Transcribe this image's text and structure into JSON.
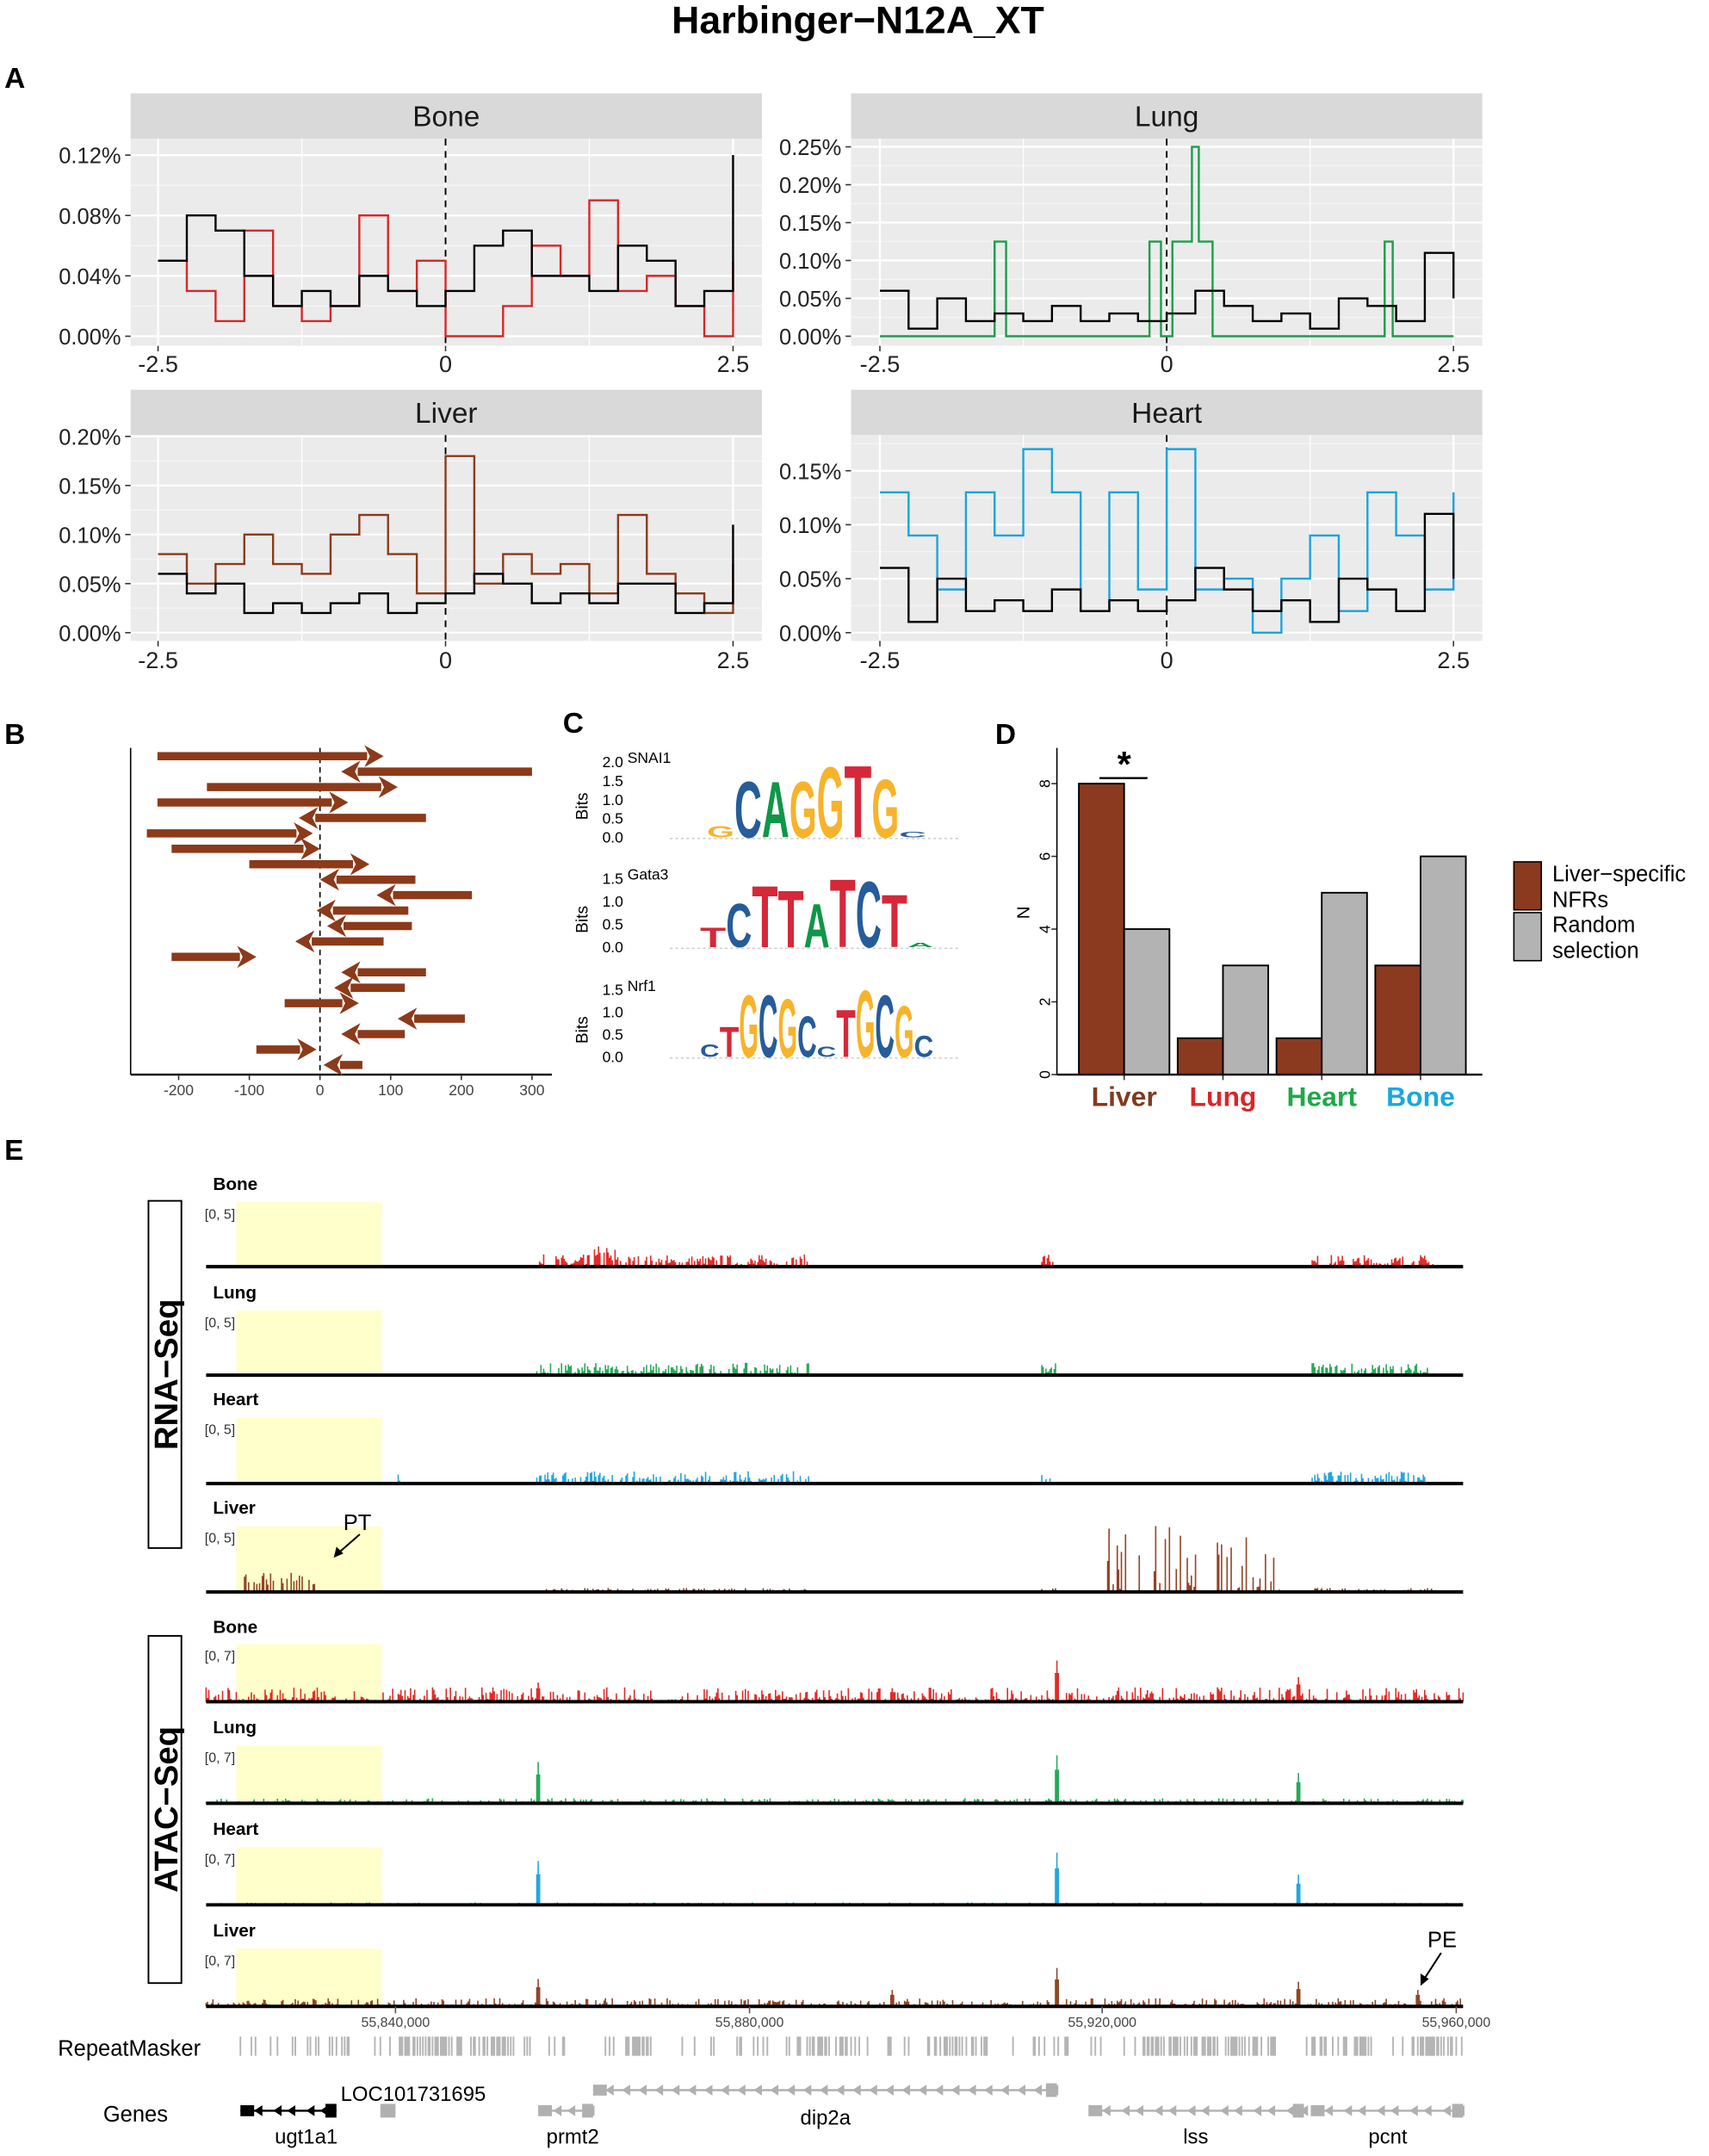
{
  "title": "Harbinger−N12A_XT",
  "panel_labels": {
    "a": "A",
    "b": "B",
    "c": "C",
    "d": "D",
    "e": "E"
  },
  "chart_data": [
    {
      "panel": "A",
      "type": "line",
      "step": true,
      "xlim": [
        -2.5,
        2.5
      ],
      "xticks": [
        "-2.5",
        "0",
        "2.5"
      ],
      "vline_at": 0,
      "grid": true,
      "facets": [
        {
          "strip": "Bone",
          "ylim": [
            0,
            0.12
          ],
          "yticks": [
            0,
            0.04,
            0.08,
            0.12
          ],
          "ytick_labels": [
            "0.00%",
            "0.04%",
            "0.08%",
            "0.12%"
          ],
          "series": [
            {
              "color": "#d62728",
              "x": [
                -2.5,
                -2.25,
                -2.0,
                -1.75,
                -1.5,
                -1.25,
                -1.0,
                -0.75,
                -0.5,
                -0.25,
                0,
                0.25,
                0.5,
                0.75,
                1.0,
                1.25,
                1.5,
                1.75,
                2.0,
                2.25,
                2.5
              ],
              "y": [
                0.05,
                0.03,
                0.01,
                0.07,
                0.02,
                0.01,
                0.02,
                0.08,
                0.03,
                0.05,
                0.0,
                0.0,
                0.02,
                0.06,
                0.04,
                0.09,
                0.03,
                0.04,
                0.02,
                0.0,
                0.05
              ]
            },
            {
              "color": "#000000",
              "x": [
                -2.5,
                -2.25,
                -2.0,
                -1.75,
                -1.5,
                -1.25,
                -1.0,
                -0.75,
                -0.5,
                -0.25,
                0,
                0.25,
                0.5,
                0.75,
                1.0,
                1.25,
                1.5,
                1.75,
                2.0,
                2.25,
                2.5
              ],
              "y": [
                0.05,
                0.08,
                0.07,
                0.04,
                0.02,
                0.03,
                0.02,
                0.04,
                0.03,
                0.02,
                0.03,
                0.06,
                0.07,
                0.04,
                0.04,
                0.03,
                0.06,
                0.05,
                0.02,
                0.03,
                0.12
              ]
            }
          ]
        },
        {
          "strip": "Lung",
          "ylim": [
            0,
            0.25
          ],
          "yticks": [
            0,
            0.05,
            0.1,
            0.15,
            0.2,
            0.25
          ],
          "ytick_labels": [
            "0.00%",
            "0.05%",
            "0.10%",
            "0.15%",
            "0.20%",
            "0.25%"
          ],
          "series": [
            {
              "color": "#1a9e4a",
              "x": [
                -2.5,
                -1.5,
                -1.4,
                -0.15,
                -0.05,
                0.05,
                0.22,
                0.28,
                0.4,
                1.9,
                1.97,
                2.5
              ],
              "y": [
                0,
                0.125,
                0,
                0.125,
                0,
                0.125,
                0.25,
                0.125,
                0,
                0.125,
                0,
                0
              ]
            },
            {
              "color": "#000000",
              "x": [
                -2.5,
                -2.25,
                -2.0,
                -1.75,
                -1.5,
                -1.25,
                -1.0,
                -0.75,
                -0.5,
                -0.25,
                0,
                0.25,
                0.5,
                0.75,
                1.0,
                1.25,
                1.5,
                1.75,
                2.0,
                2.25,
                2.5
              ],
              "y": [
                0.06,
                0.01,
                0.05,
                0.02,
                0.03,
                0.02,
                0.04,
                0.02,
                0.03,
                0.02,
                0.03,
                0.06,
                0.04,
                0.02,
                0.03,
                0.01,
                0.05,
                0.04,
                0.02,
                0.11,
                0.05
              ]
            }
          ]
        },
        {
          "strip": "Liver",
          "ylim": [
            0,
            0.2
          ],
          "yticks": [
            0,
            0.05,
            0.1,
            0.15,
            0.2
          ],
          "ytick_labels": [
            "0.00%",
            "0.05%",
            "0.10%",
            "0.15%",
            "0.20%"
          ],
          "series": [
            {
              "color": "#8b3a1a",
              "x": [
                -2.5,
                -2.25,
                -2.0,
                -1.75,
                -1.5,
                -1.25,
                -1.0,
                -0.75,
                -0.5,
                -0.25,
                0,
                0.25,
                0.5,
                0.75,
                1.0,
                1.25,
                1.5,
                1.75,
                2.0,
                2.25,
                2.5
              ],
              "y": [
                0.08,
                0.05,
                0.07,
                0.1,
                0.07,
                0.06,
                0.1,
                0.12,
                0.08,
                0.04,
                0.18,
                0.05,
                0.08,
                0.06,
                0.07,
                0.04,
                0.12,
                0.06,
                0.04,
                0.02,
                0.07
              ]
            },
            {
              "color": "#000000",
              "x": [
                -2.5,
                -2.25,
                -2.0,
                -1.75,
                -1.5,
                -1.25,
                -1.0,
                -0.75,
                -0.5,
                -0.25,
                0,
                0.25,
                0.5,
                0.75,
                1.0,
                1.25,
                1.5,
                1.75,
                2.0,
                2.25,
                2.5
              ],
              "y": [
                0.06,
                0.04,
                0.05,
                0.02,
                0.03,
                0.02,
                0.03,
                0.04,
                0.02,
                0.03,
                0.04,
                0.06,
                0.05,
                0.03,
                0.04,
                0.03,
                0.05,
                0.05,
                0.02,
                0.03,
                0.11
              ]
            }
          ]
        },
        {
          "strip": "Heart",
          "ylim": [
            0,
            0.15
          ],
          "yticks": [
            0,
            0.05,
            0.1,
            0.15
          ],
          "ytick_labels": [
            "0.00%",
            "0.05%",
            "0.10%",
            "0.15%"
          ],
          "series": [
            {
              "color": "#1ba3dc",
              "x": [
                -2.5,
                -2.25,
                -2.0,
                -1.75,
                -1.5,
                -1.25,
                -1.0,
                -0.75,
                -0.5,
                -0.25,
                0,
                0.25,
                0.5,
                0.75,
                1.0,
                1.25,
                1.5,
                1.75,
                2.0,
                2.25,
                2.5
              ],
              "y": [
                0.13,
                0.09,
                0.04,
                0.13,
                0.09,
                0.17,
                0.13,
                0.02,
                0.13,
                0.04,
                0.17,
                0.04,
                0.05,
                0.0,
                0.05,
                0.09,
                0.02,
                0.13,
                0.09,
                0.04,
                0.13
              ]
            },
            {
              "color": "#000000",
              "x": [
                -2.5,
                -2.25,
                -2.0,
                -1.75,
                -1.5,
                -1.25,
                -1.0,
                -0.75,
                -0.5,
                -0.25,
                0,
                0.25,
                0.5,
                0.75,
                1.0,
                1.25,
                1.5,
                1.75,
                2.0,
                2.25,
                2.5
              ],
              "y": [
                0.06,
                0.01,
                0.05,
                0.02,
                0.03,
                0.02,
                0.04,
                0.02,
                0.03,
                0.02,
                0.03,
                0.06,
                0.04,
                0.02,
                0.03,
                0.01,
                0.05,
                0.04,
                0.02,
                0.11,
                0.05
              ]
            }
          ]
        }
      ]
    },
    {
      "panel": "B",
      "type": "arrows",
      "xlim": [
        -270,
        310
      ],
      "xticks": [
        -200,
        -100,
        0,
        100,
        200,
        300
      ],
      "vline_at": 0,
      "color": "#8b3a1a",
      "arrows": [
        {
          "from": -230,
          "to": 90
        },
        {
          "from": 300,
          "to": 30
        },
        {
          "from": -160,
          "to": 110
        },
        {
          "from": -230,
          "to": 40
        },
        {
          "from": 150,
          "to": -30
        },
        {
          "from": -245,
          "to": -10
        },
        {
          "from": -210,
          "to": 0
        },
        {
          "from": -100,
          "to": 70
        },
        {
          "from": 135,
          "to": 0
        },
        {
          "from": 215,
          "to": 80
        },
        {
          "from": 125,
          "to": -5
        },
        {
          "from": 130,
          "to": 10
        },
        {
          "from": 90,
          "to": -35
        },
        {
          "from": -210,
          "to": -90
        },
        {
          "from": 150,
          "to": 30
        },
        {
          "from": 120,
          "to": 20
        },
        {
          "from": -50,
          "to": 55
        },
        {
          "from": 205,
          "to": 110
        },
        {
          "from": 120,
          "to": 30
        },
        {
          "from": -90,
          "to": -5
        },
        {
          "from": 60,
          "to": 5
        }
      ]
    },
    {
      "panel": "C",
      "type": "sequence-logo",
      "ylabel": "Bits",
      "letter_colors": {
        "A": "#109648",
        "C": "#255c99",
        "G": "#f7b32b",
        "T": "#d62839"
      },
      "motifs": [
        {
          "name": "SNAI1",
          "ymax": 2.0,
          "yticks": [
            "0.0",
            "0.5",
            "1.0",
            "1.5",
            "2.0"
          ],
          "letters": [
            [
              "G",
              0.3
            ],
            [
              "C",
              1.55
            ],
            [
              "A",
              1.55
            ],
            [
              "G",
              1.55
            ],
            [
              "G",
              1.95
            ],
            [
              "T",
              2.0
            ],
            [
              "G",
              1.6
            ],
            [
              "C",
              0.15
            ]
          ]
        },
        {
          "name": "Gata3",
          "ymax": 1.5,
          "yticks": [
            "0.0",
            "0.5",
            "1.0",
            "1.5"
          ],
          "letters": [
            [
              "T",
              0.45
            ],
            [
              "C",
              1.0
            ],
            [
              "T",
              1.4
            ],
            [
              "T",
              1.3
            ],
            [
              "A",
              1.0
            ],
            [
              "T",
              1.55
            ],
            [
              "C",
              1.5
            ],
            [
              "T",
              1.2
            ],
            [
              "A",
              0.1
            ]
          ]
        },
        {
          "name": "Nrf1",
          "ymax": 1.5,
          "yticks": [
            "0.0",
            "0.5",
            "1.0",
            "1.5"
          ],
          "letters": [
            [
              "C",
              0.3
            ],
            [
              "T",
              0.7
            ],
            [
              "G",
              1.45
            ],
            [
              "C",
              1.45
            ],
            [
              "G",
              1.35
            ],
            [
              "C",
              0.95
            ],
            [
              "C",
              0.25
            ],
            [
              "T",
              1.1
            ],
            [
              "G",
              1.55
            ],
            [
              "C",
              1.45
            ],
            [
              "G",
              1.2
            ],
            [
              "C",
              0.5
            ]
          ]
        }
      ]
    },
    {
      "panel": "D",
      "type": "bar",
      "ylabel": "N",
      "ylim": [
        0,
        8.9
      ],
      "yticks": [
        0,
        2,
        4,
        6,
        8
      ],
      "categories": [
        "Liver",
        "Lung",
        "Heart",
        "Bone"
      ],
      "category_colors": [
        "#7f3b1f",
        "#d62728",
        "#1fa84a",
        "#1aa7e0"
      ],
      "series": [
        {
          "name": "Liver−specific NFRs",
          "color": "#8b3a1f",
          "values": [
            8,
            1,
            1,
            3
          ]
        },
        {
          "name": "Random selection",
          "color": "#b3b3b3",
          "values": [
            4,
            3,
            5,
            6
          ]
        }
      ],
      "legend": {
        "placement": "right",
        "entries": [
          [
            "Liver−specific",
            "NFRs"
          ],
          [
            "Random",
            "selection"
          ]
        ]
      },
      "annotation": {
        "text": "*",
        "category": "Liver"
      }
    },
    {
      "panel": "E",
      "type": "genome-tracks",
      "groups": [
        {
          "label": "RNA−Seq",
          "tracks": [
            {
              "name": "Bone",
              "range": "[0, 5]",
              "color": "#e0201b"
            },
            {
              "name": "Lung",
              "range": "[0, 5]",
              "color": "#1aa550"
            },
            {
              "name": "Heart",
              "range": "[0, 5]",
              "color": "#16a2dc"
            },
            {
              "name": "Liver",
              "range": "[0, 5]",
              "color": "#8b3a1a"
            }
          ]
        },
        {
          "label": "ATAC−Seq",
          "tracks": [
            {
              "name": "Bone",
              "range": "[0, 7]",
              "color": "#e0201b"
            },
            {
              "name": "Lung",
              "range": "[0, 7]",
              "color": "#1aa550"
            },
            {
              "name": "Heart",
              "range": "[0, 7]",
              "color": "#16a2dc"
            },
            {
              "name": "Liver",
              "range": "[0, 7]",
              "color": "#8b3a1a"
            }
          ]
        }
      ],
      "highlight_region": [
        55822000,
        55838500
      ],
      "highlight_color": "#ffffcc",
      "axis_ticks": [
        "55,840,000",
        "55,880,000",
        "55,920,000",
        "55,960,000"
      ],
      "annotations": [
        {
          "text": "PT",
          "track": "RNA Liver"
        },
        {
          "text": "PE",
          "track": "ATAC Liver"
        }
      ],
      "repeatmasker_label": "RepeatMasker",
      "genes_label": "Genes",
      "genes": [
        {
          "name": "ugt1a1",
          "color": "#000000"
        },
        {
          "name": "LOC101731695",
          "color": "#000000"
        },
        {
          "name": "prmt2",
          "color": "#b0b0b0"
        },
        {
          "name": "dip2a",
          "color": "#b0b0b0"
        },
        {
          "name": "lss",
          "color": "#b0b0b0"
        },
        {
          "name": "pcnt",
          "color": "#b0b0b0"
        }
      ]
    }
  ]
}
